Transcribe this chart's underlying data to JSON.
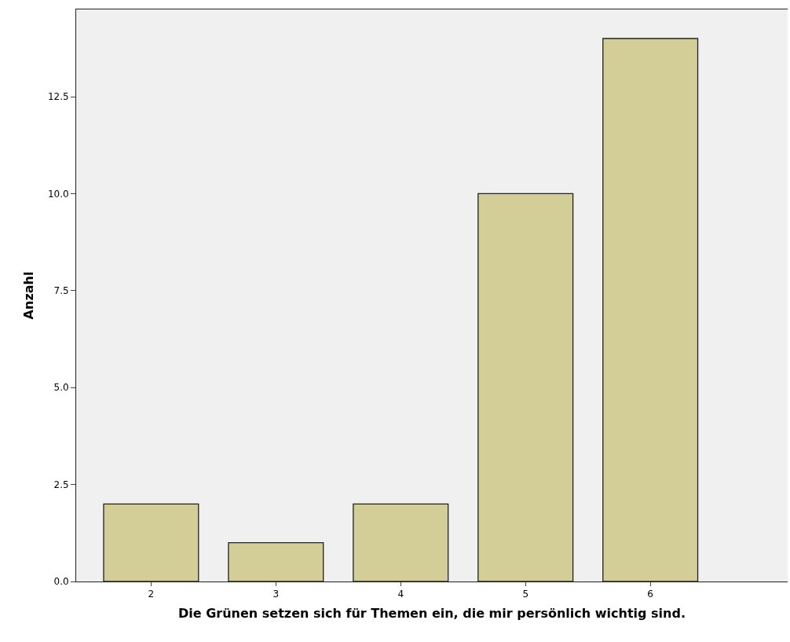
{
  "chart_data": {
    "type": "bar",
    "xlabel": "Die Grünen setzen sich für Themen ein, die mir persönlich wichtig sind.",
    "ylabel": "Anzahl",
    "categories": [
      "2",
      "3",
      "4",
      "5",
      "6"
    ],
    "values": [
      2,
      1,
      2,
      10,
      14
    ],
    "color": "#d3ce97",
    "ylim": [
      0,
      14.75
    ],
    "yticks": [
      {
        "value": 0,
        "label": "0.0"
      },
      {
        "value": 2.5,
        "label": "2.5"
      },
      {
        "value": 5,
        "label": "5.0"
      },
      {
        "value": 7.5,
        "label": "7.5"
      },
      {
        "value": 10,
        "label": "10.0"
      },
      {
        "value": 12.5,
        "label": "12.5"
      }
    ],
    "grid": false
  }
}
